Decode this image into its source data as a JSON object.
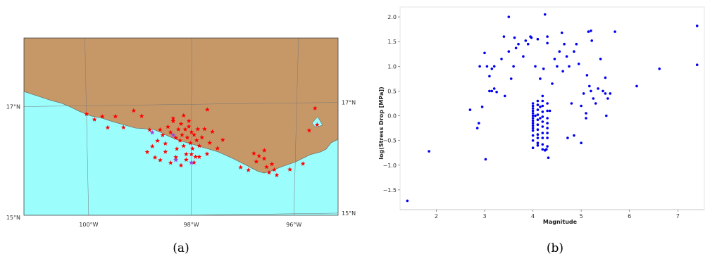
{
  "colors": {
    "land": "#c69868",
    "sea": "#9cfdfd",
    "event": "#ff0000",
    "event_alt": "#a040e0",
    "point": "#0000ee"
  },
  "chart_data": [
    {
      "type": "map",
      "caption": "(a)",
      "lon_range": [
        -101.2,
        -95.2
      ],
      "lat_range": [
        15.0,
        18.2
      ],
      "lon_ticks": [
        {
          "value": -100,
          "label": "100°W"
        },
        {
          "value": -98,
          "label": "98°W"
        },
        {
          "value": -96,
          "label": "96°W"
        }
      ],
      "lat_ticks_left": [
        {
          "value": 17,
          "label": "17°N"
        },
        {
          "value": 15,
          "label": "15°N"
        }
      ],
      "lat_ticks_right": [
        {
          "value": 17,
          "label": "17°N"
        },
        {
          "value": 15,
          "label": "15°N"
        }
      ],
      "events": [
        [
          -100.0,
          16.85
        ],
        [
          -99.85,
          16.75
        ],
        [
          -99.7,
          16.8
        ],
        [
          -99.6,
          16.6
        ],
        [
          -99.45,
          16.8
        ],
        [
          -99.3,
          16.6
        ],
        [
          -99.1,
          16.9
        ],
        [
          -98.95,
          16.8
        ],
        [
          -98.8,
          16.55
        ],
        [
          -98.85,
          16.15
        ],
        [
          -98.75,
          16.25
        ],
        [
          -98.7,
          16.05
        ],
        [
          -98.65,
          16.35
        ],
        [
          -98.6,
          16.55
        ],
        [
          -98.55,
          16.45
        ],
        [
          -98.5,
          16.3
        ],
        [
          -98.45,
          16.6
        ],
        [
          -98.4,
          16.5
        ],
        [
          -98.35,
          16.7
        ],
        [
          -98.3,
          16.4
        ],
        [
          -98.28,
          16.2
        ],
        [
          -98.25,
          16.55
        ],
        [
          -98.22,
          16.35
        ],
        [
          -98.2,
          16.65
        ],
        [
          -98.18,
          16.45
        ],
        [
          -98.15,
          16.25
        ],
        [
          -98.12,
          16.55
        ],
        [
          -98.1,
          16.1
        ],
        [
          -98.08,
          16.4
        ],
        [
          -98.05,
          16.6
        ],
        [
          -98.02,
          16.3
        ],
        [
          -98.0,
          16.5
        ],
        [
          -97.98,
          16.2
        ],
        [
          -97.95,
          16.45
        ],
        [
          -97.92,
          16.05
        ],
        [
          -97.9,
          16.35
        ],
        [
          -97.88,
          16.55
        ],
        [
          -97.85,
          16.25
        ],
        [
          -97.8,
          16.4
        ],
        [
          -97.75,
          16.55
        ],
        [
          -97.7,
          16.1
        ],
        [
          -97.65,
          16.3
        ],
        [
          -98.6,
          16.0
        ],
        [
          -98.5,
          16.15
        ],
        [
          -98.4,
          15.95
        ],
        [
          -98.3,
          16.05
        ],
        [
          -98.2,
          15.9
        ],
        [
          -98.1,
          16.0
        ],
        [
          -98.0,
          16.1
        ],
        [
          -97.95,
          15.95
        ],
        [
          -97.85,
          16.05
        ],
        [
          -98.35,
          16.75
        ],
        [
          -98.15,
          16.8
        ],
        [
          -98.05,
          16.7
        ],
        [
          -97.6,
          16.5
        ],
        [
          -97.5,
          16.2
        ],
        [
          -97.4,
          16.35
        ],
        [
          -97.7,
          16.9
        ],
        [
          -96.8,
          16.1
        ],
        [
          -96.75,
          15.95
        ],
        [
          -96.7,
          16.05
        ],
        [
          -96.6,
          16.0
        ],
        [
          -96.55,
          15.85
        ],
        [
          -96.5,
          15.75
        ],
        [
          -96.45,
          15.9
        ],
        [
          -96.4,
          15.8
        ],
        [
          -96.35,
          15.7
        ],
        [
          -96.6,
          16.15
        ],
        [
          -96.9,
          15.8
        ],
        [
          -97.05,
          15.85
        ],
        [
          -96.1,
          15.8
        ],
        [
          -95.85,
          15.9
        ],
        [
          -95.75,
          16.5
        ],
        [
          -95.65,
          16.9
        ],
        [
          -95.6,
          16.6
        ]
      ],
      "events_alt": [
        [
          -98.75,
          16.5
        ],
        [
          -98.35,
          16.45
        ],
        [
          -98.3,
          16.0
        ],
        [
          -98.0,
          15.95
        ]
      ]
    },
    {
      "type": "scatter",
      "caption": "(b)",
      "xlabel": "Magnitude",
      "ylabel": "log(Stress Drop [MPa])",
      "xlim": [
        1.25,
        7.55
      ],
      "ylim": [
        -1.9,
        2.2
      ],
      "xticks": [
        2,
        3,
        4,
        5,
        6,
        7
      ],
      "yticks": [
        -1.5,
        -1.0,
        -0.5,
        0.0,
        0.5,
        1.0,
        1.5,
        2.0
      ],
      "ytick_labels": [
        "−1.5",
        "−1.0",
        "−0.5",
        "0.0",
        "0.5",
        "1.0",
        "1.5",
        "2.0"
      ],
      "points": [
        [
          1.4,
          -1.72
        ],
        [
          1.85,
          -0.72
        ],
        [
          2.7,
          0.12
        ],
        [
          2.85,
          -0.25
        ],
        [
          2.88,
          -0.15
        ],
        [
          2.9,
          1.0
        ],
        [
          2.95,
          0.18
        ],
        [
          3.0,
          1.27
        ],
        [
          3.02,
          -0.88
        ],
        [
          3.05,
          1.0
        ],
        [
          3.1,
          0.5
        ],
        [
          3.1,
          0.8
        ],
        [
          3.15,
          0.5
        ],
        [
          3.15,
          0.95
        ],
        [
          3.2,
          0.55
        ],
        [
          3.2,
          1.0
        ],
        [
          3.25,
          0.48
        ],
        [
          3.35,
          1.15
        ],
        [
          3.4,
          1.6
        ],
        [
          3.42,
          0.4
        ],
        [
          3.5,
          1.3
        ],
        [
          3.5,
          2.0
        ],
        [
          3.55,
          0.75
        ],
        [
          3.6,
          1.0
        ],
        [
          3.62,
          1.58
        ],
        [
          3.65,
          1.37
        ],
        [
          3.7,
          1.45
        ],
        [
          3.8,
          1.2
        ],
        [
          3.85,
          1.52
        ],
        [
          3.9,
          1.45
        ],
        [
          3.95,
          1.6
        ],
        [
          3.97,
          1.58
        ],
        [
          4.05,
          1.0
        ],
        [
          4.1,
          1.55
        ],
        [
          4.15,
          0.75
        ],
        [
          4.2,
          0.4
        ],
        [
          4.25,
          2.05
        ],
        [
          4.3,
          1.6
        ],
        [
          4.3,
          1.47
        ],
        [
          4.35,
          0.1
        ],
        [
          4.4,
          0.65
        ],
        [
          4.45,
          1.15
        ],
        [
          4.5,
          1.0
        ],
        [
          4.55,
          1.3
        ],
        [
          4.6,
          1.68
        ],
        [
          4.62,
          0.9
        ],
        [
          4.65,
          1.45
        ],
        [
          4.7,
          1.2
        ],
        [
          4.72,
          -0.45
        ],
        [
          4.75,
          1.0
        ],
        [
          4.8,
          0.25
        ],
        [
          4.85,
          -0.4
        ],
        [
          4.85,
          1.3
        ],
        [
          4.9,
          1.45
        ],
        [
          4.95,
          1.05
        ],
        [
          5.0,
          0.2
        ],
        [
          5.0,
          -0.55
        ],
        [
          5.05,
          0.45
        ],
        [
          5.1,
          0.05
        ],
        [
          5.1,
          -0.05
        ],
        [
          5.12,
          0.82
        ],
        [
          5.15,
          1.7
        ],
        [
          5.17,
          0.6
        ],
        [
          5.2,
          0.5
        ],
        [
          5.2,
          1.72
        ],
        [
          5.22,
          1.52
        ],
        [
          5.25,
          0.35
        ],
        [
          5.3,
          0.25
        ],
        [
          5.35,
          0.55
        ],
        [
          5.4,
          1.15
        ],
        [
          5.45,
          0.5
        ],
        [
          5.5,
          0.45
        ],
        [
          5.5,
          0.77
        ],
        [
          5.52,
          0.0
        ],
        [
          5.55,
          0.35
        ],
        [
          5.6,
          0.45
        ],
        [
          5.7,
          1.7
        ],
        [
          6.15,
          0.6
        ],
        [
          6.62,
          0.95
        ],
        [
          7.4,
          1.82
        ],
        [
          7.4,
          1.03
        ],
        [
          4.0,
          0.25
        ],
        [
          4.0,
          0.2
        ],
        [
          4.0,
          0.15
        ],
        [
          4.0,
          0.1
        ],
        [
          4.0,
          0.05
        ],
        [
          4.0,
          0.0
        ],
        [
          4.0,
          -0.05
        ],
        [
          4.0,
          -0.1
        ],
        [
          4.0,
          -0.15
        ],
        [
          4.0,
          -0.2
        ],
        [
          4.0,
          -0.25
        ],
        [
          4.0,
          -0.3
        ],
        [
          4.0,
          -0.4
        ],
        [
          4.0,
          -0.5
        ],
        [
          4.0,
          -0.65
        ],
        [
          4.1,
          0.3
        ],
        [
          4.1,
          0.22
        ],
        [
          4.1,
          0.12
        ],
        [
          4.1,
          0.02
        ],
        [
          4.1,
          -0.08
        ],
        [
          4.1,
          -0.18
        ],
        [
          4.1,
          -0.28
        ],
        [
          4.1,
          -0.38
        ],
        [
          4.1,
          -0.45
        ],
        [
          4.1,
          -0.55
        ],
        [
          4.1,
          -0.6
        ],
        [
          4.2,
          0.3
        ],
        [
          4.2,
          0.2
        ],
        [
          4.2,
          0.08
        ],
        [
          4.2,
          -0.02
        ],
        [
          4.2,
          -0.12
        ],
        [
          4.2,
          -0.22
        ],
        [
          4.2,
          -0.35
        ],
        [
          4.2,
          -0.45
        ],
        [
          4.2,
          -0.58
        ],
        [
          4.2,
          -0.68
        ],
        [
          4.3,
          0.25
        ],
        [
          4.3,
          0.1
        ],
        [
          4.3,
          -0.05
        ],
        [
          4.3,
          -0.15
        ],
        [
          4.3,
          -0.25
        ],
        [
          4.3,
          -0.35
        ],
        [
          4.3,
          -0.45
        ],
        [
          4.3,
          -0.62
        ],
        [
          4.32,
          -0.85
        ],
        [
          4.25,
          -0.7
        ],
        [
          4.28,
          -0.68
        ],
        [
          4.05,
          0.0
        ],
        [
          4.15,
          -0.05
        ],
        [
          4.15,
          0.18
        ],
        [
          4.22,
          0.95
        ]
      ]
    }
  ]
}
